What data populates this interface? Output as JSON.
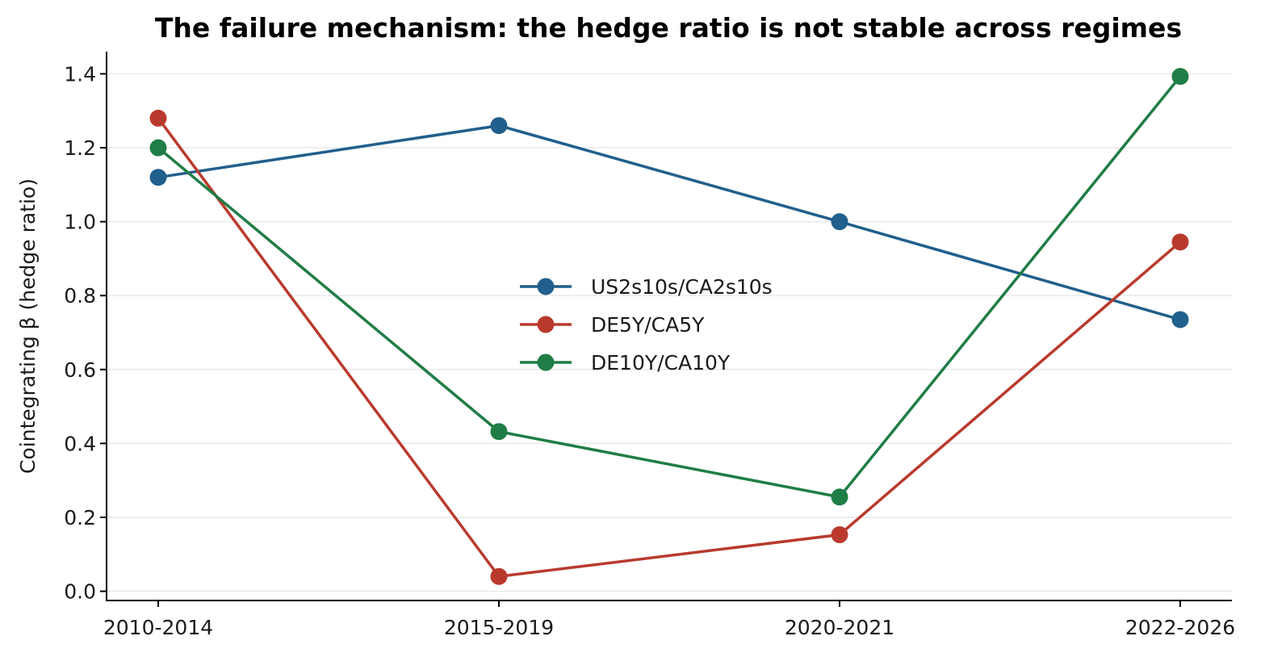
{
  "chart_data": {
    "type": "line",
    "title": "The failure mechanism: the hedge ratio is not stable across regimes",
    "xlabel": "",
    "ylabel": "Cointegrating β (hedge ratio)",
    "categories": [
      "2010-2014",
      "2015-2019",
      "2020-2021",
      "2022-2026"
    ],
    "ylim": [
      -0.025,
      1.46
    ],
    "yticks": [
      0.0,
      0.2,
      0.4,
      0.6,
      0.8,
      1.0,
      1.2,
      1.4
    ],
    "ytick_labels": [
      "0.0",
      "0.2",
      "0.4",
      "0.6",
      "0.8",
      "1.0",
      "1.2",
      "1.4"
    ],
    "grid": "horizontal",
    "legend_position": "center",
    "series": [
      {
        "name": "US2s10s/CA2s10s",
        "color": "#215f8c",
        "values": [
          1.12,
          1.26,
          1.0,
          0.735
        ]
      },
      {
        "name": "DE5Y/CA5Y",
        "color": "#b93a2d",
        "values": [
          1.28,
          0.04,
          0.153,
          0.945
        ]
      },
      {
        "name": "DE10Y/CA10Y",
        "color": "#1f7d45",
        "values": [
          1.2,
          0.432,
          0.255,
          1.393
        ]
      }
    ]
  }
}
